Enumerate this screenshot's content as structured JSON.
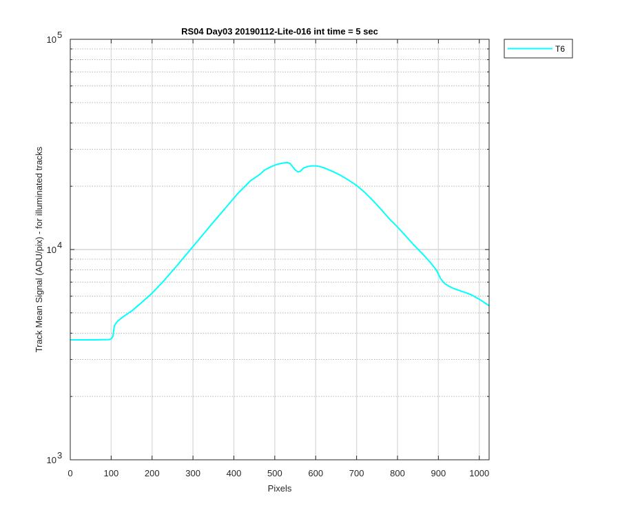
{
  "chart_data": {
    "type": "line",
    "title": "RS04 Day03 20190112-Lite-016 int time = 5 sec",
    "xlabel": "Pixels",
    "ylabel": "Track Mean Signal (ADU/pix) - for illuminated tracks",
    "xlim": [
      0,
      1024
    ],
    "ylim": [
      1000,
      100000
    ],
    "yscale": "log",
    "grid": true,
    "legend_position": "outside-top-right",
    "x_ticks": [
      0,
      100,
      200,
      300,
      400,
      500,
      600,
      700,
      800,
      900,
      1000
    ],
    "y_ticks": [
      {
        "value": 1000,
        "base": "10",
        "exp": "3"
      },
      {
        "value": 10000,
        "base": "10",
        "exp": "4"
      },
      {
        "value": 100000,
        "base": "10",
        "exp": "5"
      }
    ],
    "series": [
      {
        "name": "T6",
        "color": "#00FFFF",
        "x": [
          0,
          20,
          40,
          60,
          80,
          95,
          100,
          104,
          108,
          115,
          130,
          150,
          170,
          200,
          230,
          260,
          290,
          320,
          350,
          380,
          410,
          440,
          455,
          465,
          475,
          490,
          505,
          520,
          530,
          537,
          543,
          550,
          557,
          563,
          570,
          580,
          590,
          600,
          610,
          620,
          640,
          660,
          680,
          700,
          720,
          740,
          760,
          780,
          800,
          820,
          840,
          860,
          880,
          895,
          905,
          915,
          925,
          940,
          960,
          980,
          1000,
          1015,
          1024
        ],
        "y": [
          3720,
          3720,
          3720,
          3720,
          3725,
          3730,
          3760,
          3850,
          4350,
          4550,
          4800,
          5100,
          5500,
          6200,
          7150,
          8350,
          9800,
          11500,
          13500,
          15800,
          18500,
          21200,
          22200,
          22900,
          23900,
          24700,
          25400,
          25800,
          25900,
          25700,
          24900,
          23900,
          23400,
          23600,
          24400,
          24800,
          25000,
          25000,
          24800,
          24500,
          23600,
          22600,
          21400,
          20200,
          18700,
          17100,
          15500,
          14000,
          12800,
          11600,
          10500,
          9600,
          8700,
          8000,
          7300,
          6900,
          6700,
          6500,
          6300,
          6100,
          5800,
          5550,
          5400
        ]
      }
    ]
  }
}
